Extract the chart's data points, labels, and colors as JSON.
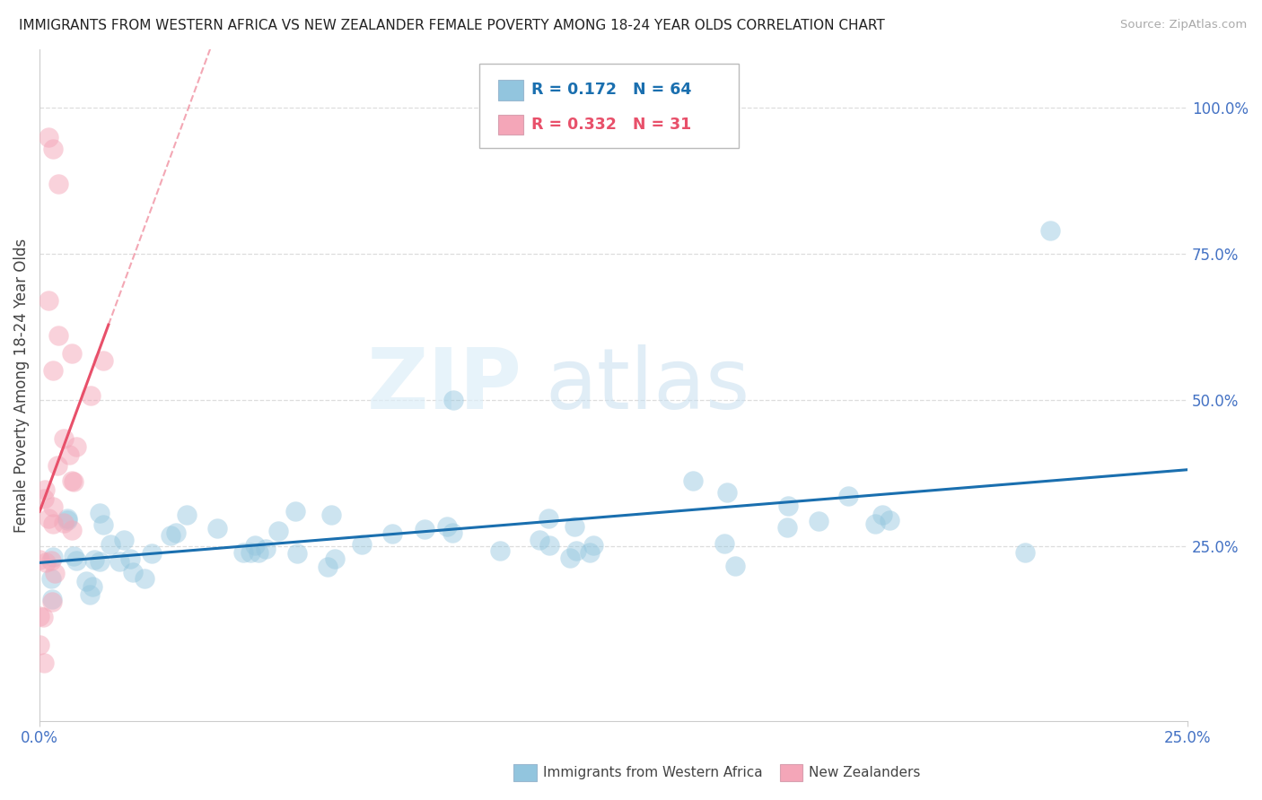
{
  "title": "IMMIGRANTS FROM WESTERN AFRICA VS NEW ZEALANDER FEMALE POVERTY AMONG 18-24 YEAR OLDS CORRELATION CHART",
  "source": "Source: ZipAtlas.com",
  "ylabel": "Female Poverty Among 18-24 Year Olds",
  "ylabel_right_ticks": [
    "100.0%",
    "75.0%",
    "50.0%",
    "25.0%"
  ],
  "ylabel_right_vals": [
    1.0,
    0.75,
    0.5,
    0.25
  ],
  "legend_blue_r": "0.172",
  "legend_blue_n": "64",
  "legend_pink_r": "0.332",
  "legend_pink_n": "31",
  "blue_color": "#92c5de",
  "pink_color": "#f4a6b8",
  "blue_line_color": "#1a6faf",
  "pink_line_color": "#e8506a",
  "xlim": [
    0.0,
    0.25
  ],
  "ylim": [
    -0.05,
    1.1
  ],
  "watermark_zip": "ZIP",
  "watermark_atlas": "atlas",
  "background_color": "#ffffff",
  "grid_color": "#cccccc",
  "x_ticks": [
    0.0,
    0.25
  ],
  "x_tick_labels": [
    "0.0%",
    "25.0%"
  ]
}
